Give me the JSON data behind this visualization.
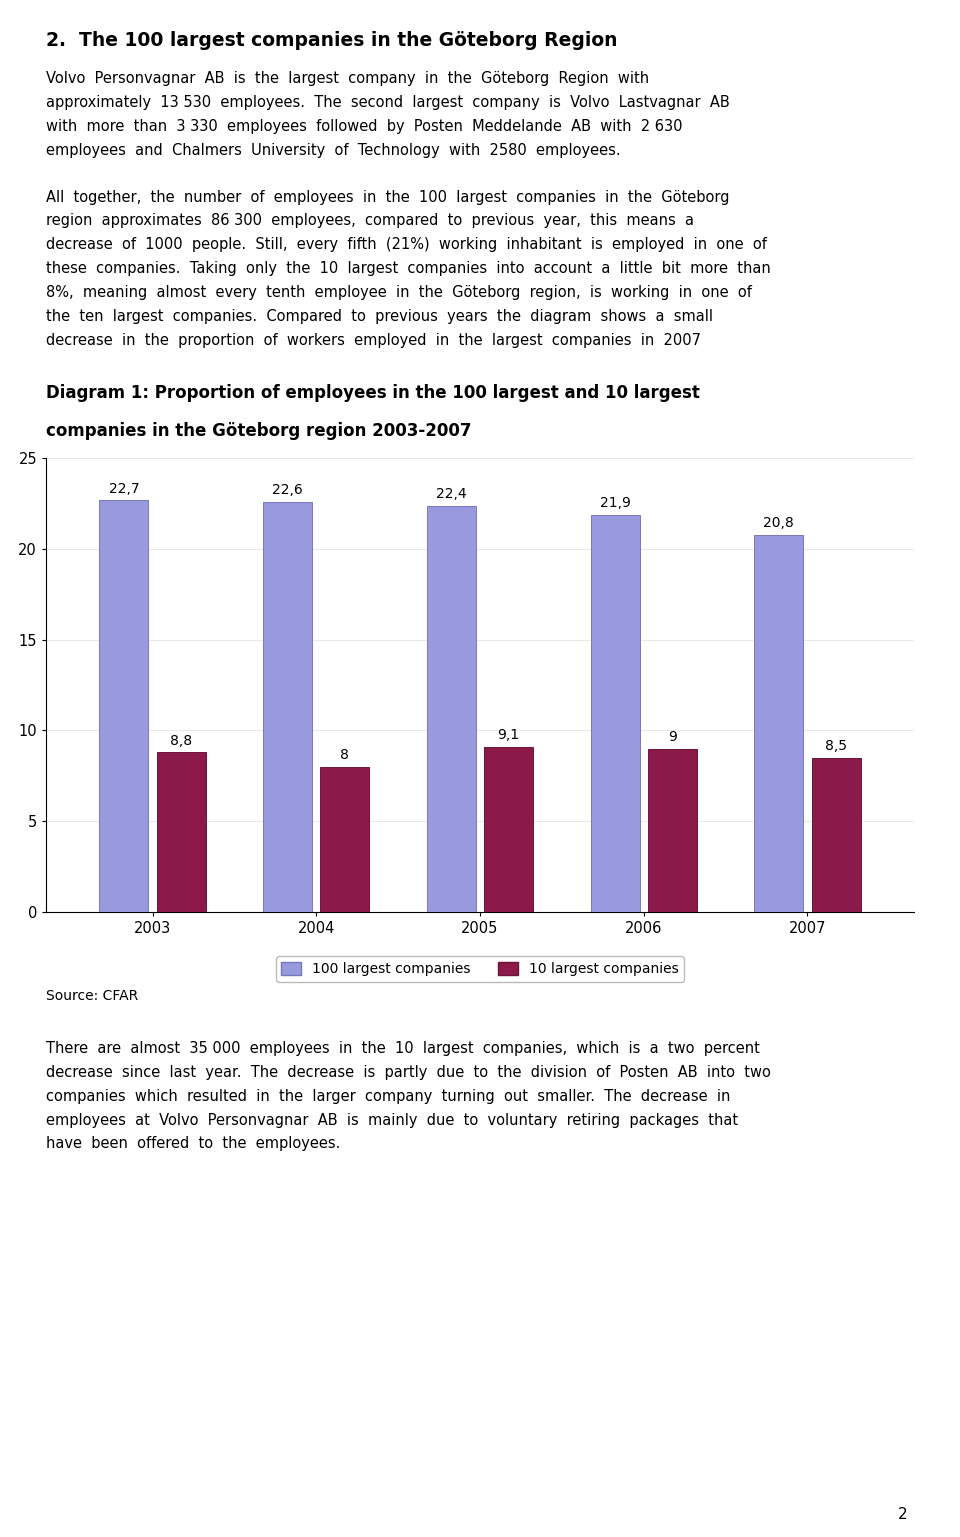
{
  "title_section": "2.  The 100 largest companies in the Göteborg Region",
  "para1_lines": [
    "Volvo  Personvagnar  AB  is  the  largest  company  in  the  Göteborg  Region  with",
    "approximately  13 530  employees.  The  second  largest  company  is  Volvo  Lastvagnar  AB",
    "with  more  than  3 330  employees  followed  by  Posten  Meddelande  AB  with  2 630",
    "employees  and  Chalmers  University  of  Technology  with  2580  employees."
  ],
  "para2_lines": [
    "All  together,  the  number  of  employees  in  the  100  largest  companies  in  the  Göteborg",
    "region  approximates  86 300  employees,  compared  to  previous  year,  this  means  a",
    "decrease  of  1000  people.  Still,  every  fifth  (21%)  working  inhabitant  is  employed  in  one  of",
    "these  companies.  Taking  only  the  10  largest  companies  into  account  a  little  bit  more  than",
    "8%,  meaning  almost  every  tenth  employee  in  the  Göteborg  region,  is  working  in  one  of",
    "the  ten  largest  companies.  Compared  to  previous  years  the  diagram  shows  a  small",
    "decrease  in  the  proportion  of  workers  employed  in  the  largest  companies  in  2007"
  ],
  "diag_title1": "Diagram 1: Proportion of employees in the 100 largest and 10 largest",
  "diag_title2": "companies in the Göteborg region 2003-2007",
  "years": [
    2003,
    2004,
    2005,
    2006,
    2007
  ],
  "values_100": [
    22.7,
    22.6,
    22.4,
    21.9,
    20.8
  ],
  "values_10": [
    8.8,
    8.0,
    9.1,
    9.0,
    8.5
  ],
  "labels_100": [
    "22,7",
    "22,6",
    "22,4",
    "21,9",
    "20,8"
  ],
  "labels_10": [
    "8,8",
    "8",
    "9,1",
    "9",
    "8,5"
  ],
  "color_100": "#9999dd",
  "color_10": "#8b1a4a",
  "ylim": [
    0,
    25
  ],
  "yticks": [
    0,
    5,
    10,
    15,
    20,
    25
  ],
  "legend_100": "100 largest companies",
  "legend_10": "10 largest companies",
  "source": "Source: CFAR",
  "para3_lines": [
    "There  are  almost  35 000  employees  in  the  10  largest  companies,  which  is  a  two  percent",
    "decrease  since  last  year.  The  decrease  is  partly  due  to  the  division  of  Posten  AB  into  two",
    "companies  which  resulted  in  the  larger  company  turning  out  smaller.  The  decrease  in",
    "employees  at  Volvo  Personvagnar  AB  is  mainly  due  to  voluntary  retiring  packages  that",
    "have  been  offered  to  the  employees."
  ],
  "page_num": "2",
  "bg_color": "#ffffff",
  "text_color": "#000000",
  "font_family": "DejaVu Sans",
  "title_fontsize": 13.5,
  "body_fontsize": 10.5,
  "diag_title_fontsize": 12.0,
  "source_fontsize": 10.0,
  "tick_fontsize": 10.5,
  "bar_label_fontsize": 10.0
}
